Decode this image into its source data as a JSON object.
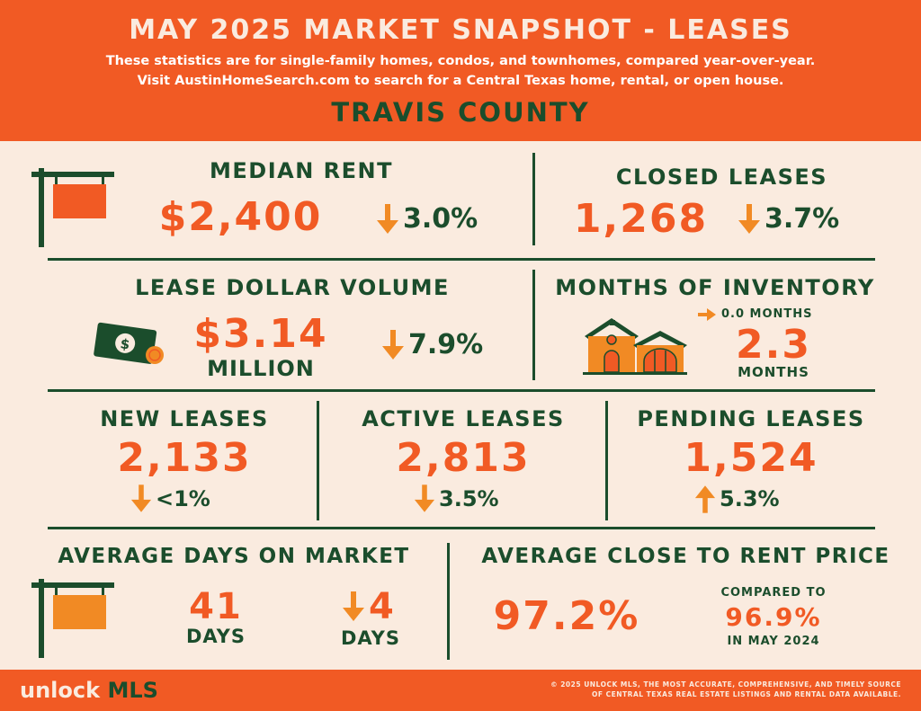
{
  "header": {
    "title": "MAY 2025 MARKET SNAPSHOT - LEASES",
    "subtitle_line1": "These statistics are for single-family homes, condos, and townhomes, compared year-over-year.",
    "subtitle_line2": "Visit AustinHomeSearch.com to search for a Central Texas home, rental, or open house.",
    "county": "TRAVIS COUNTY"
  },
  "median_rent": {
    "label": "MEDIAN RENT",
    "value": "$2,400",
    "direction": "down",
    "change": "3.0%"
  },
  "closed_leases": {
    "label": "CLOSED LEASES",
    "value": "1,268",
    "direction": "down",
    "change": "3.7%"
  },
  "lease_dollar_volume": {
    "label": "LEASE DOLLAR VOLUME",
    "value": "$3.14",
    "unit": "MILLION",
    "direction": "down",
    "change": "7.9%"
  },
  "months_of_inventory": {
    "label": "MONTHS OF INVENTORY",
    "direction": "flat",
    "change": "0.0  MONTHS",
    "value": "2.3",
    "unit": "MONTHS"
  },
  "new_leases": {
    "label": "NEW LEASES",
    "value": "2,133",
    "direction": "down",
    "change": "<1%"
  },
  "active_leases": {
    "label": "ACTIVE LEASES",
    "value": "2,813",
    "direction": "down",
    "change": "3.5%"
  },
  "pending_leases": {
    "label": "PENDING LEASES",
    "value": "1,524",
    "direction": "up",
    "change": "5.3%"
  },
  "days_on_market": {
    "label": "AVERAGE DAYS ON MARKET",
    "value": "41",
    "unit": "DAYS",
    "direction": "down",
    "change": "4",
    "change_unit": "DAYS"
  },
  "close_to_rent": {
    "label": "AVERAGE CLOSE TO RENT PRICE",
    "value": "97.2%",
    "compare_label": "COMPARED TO",
    "compare_value": "96.9%",
    "compare_period": "IN MAY 2024"
  },
  "footer": {
    "logo_part1": "unlock ",
    "logo_part2": "MLS",
    "copyright_line1": "© 2025 UNLOCK MLS, THE MOST ACCURATE, COMPREHENSIVE, AND TIMELY SOURCE",
    "copyright_line2": "OF CENTRAL TEXAS REAL ESTATE LISTINGS AND RENTAL DATA AVAILABLE."
  },
  "colors": {
    "orange": "#f15a24",
    "green": "#1b4d2c",
    "cream": "#faebdf",
    "arrow_orange": "#f18a24"
  },
  "icons": [
    "sign-post-icon",
    "dollar-bill-icon",
    "house-icon",
    "down-arrow-icon",
    "right-arrow-icon",
    "up-arrow-icon"
  ]
}
